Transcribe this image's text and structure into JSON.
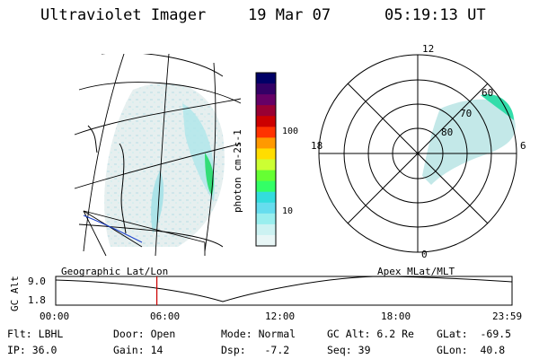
{
  "header": {
    "instrument": "Ultraviolet Imager",
    "date": "19 Mar 07",
    "time": "05:19:13 UT"
  },
  "colorbar": {
    "label": "photon cm-2s-1",
    "ticks": [
      "100",
      "10"
    ],
    "colors": [
      "#000066",
      "#330066",
      "#660066",
      "#990033",
      "#cc0000",
      "#ff3300",
      "#ff9900",
      "#ffdd00",
      "#ccff33",
      "#66ff33",
      "#33ff66",
      "#33dddd",
      "#66ddee",
      "#99eeee",
      "#ccf2f2",
      "#e8f6f6"
    ]
  },
  "polar": {
    "mlt_labels": {
      "top": "12",
      "left": "18",
      "right": "6",
      "bottom": "0"
    },
    "lat_labels": [
      "60",
      "70",
      "80"
    ]
  },
  "orbit": {
    "ylabel": "GC Alt",
    "ymax": "9.0",
    "ymin": "1.8",
    "left_title": "Geographic Lat/Lon",
    "right_title": "Apex MLat/MLT",
    "xticks": [
      "00:00",
      "06:00",
      "12:00",
      "18:00",
      "23:59"
    ],
    "current_hour": 5.32,
    "line_color": "#cc0000"
  },
  "info": {
    "flt_label": "Flt:",
    "flt_value": "LBHL",
    "door_label": "Door:",
    "door_value": "Open",
    "mode_label": "Mode:",
    "mode_value": "Normal",
    "gcalt_label": "GC Alt:",
    "gcalt_value": "6.2 Re",
    "glat_label": "GLat:",
    "glat_value": "-69.5",
    "ip_label": "IP:",
    "ip_value": "36.0",
    "gain_label": "Gain:",
    "gain_value": "14",
    "dsp_label": "Dsp:",
    "dsp_value": "-7.2",
    "seq_label": "Seq:",
    "seq_value": "39",
    "glon_label": "GLon:",
    "glon_value": "40.8"
  }
}
